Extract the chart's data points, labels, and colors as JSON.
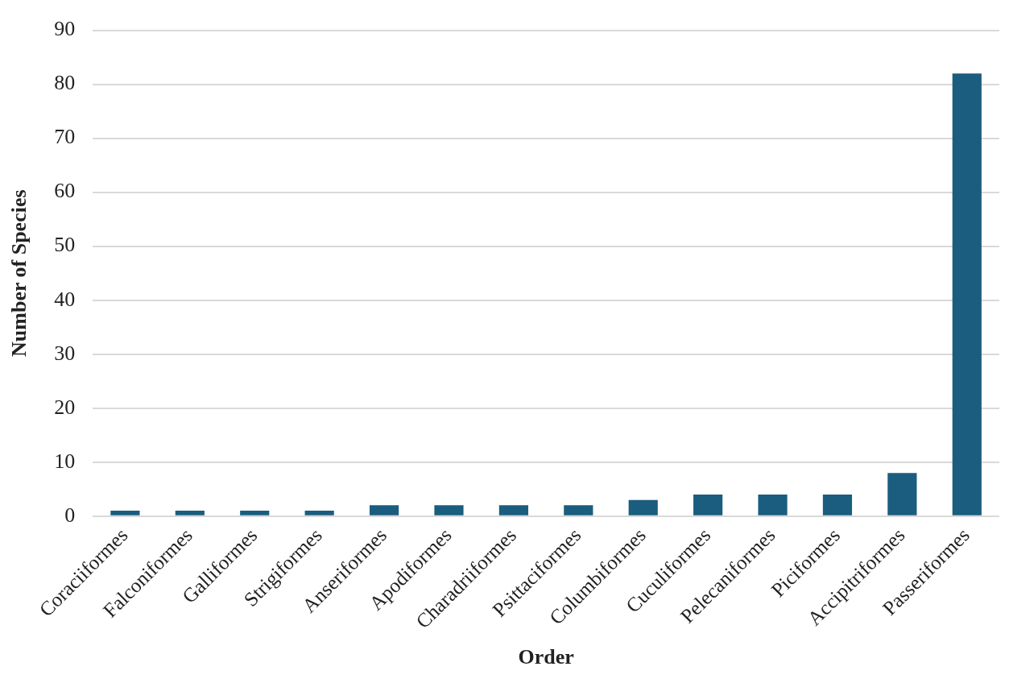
{
  "chart_data": {
    "type": "bar",
    "xlabel": "Order",
    "ylabel": "Number of Species",
    "categories": [
      "Coraciiformes",
      "Falconiformes",
      "Galliformes",
      "Strigiformes",
      "Anseriformes",
      "Apodiformes",
      "Charadriiformes",
      "Psittaciformes",
      "Columbiformes",
      "Cuculiformes",
      "Pelecaniformes",
      "Piciformes",
      "Accipitriformes",
      "Passeriformes"
    ],
    "values": [
      1,
      1,
      1,
      1,
      2,
      2,
      2,
      2,
      3,
      4,
      4,
      4,
      8,
      82
    ],
    "color": "#1b5d7e",
    "ylim": [
      0,
      90
    ],
    "yticks": [
      0,
      10,
      20,
      30,
      40,
      50,
      60,
      70,
      80,
      90
    ],
    "grid": "y",
    "legend": false
  }
}
